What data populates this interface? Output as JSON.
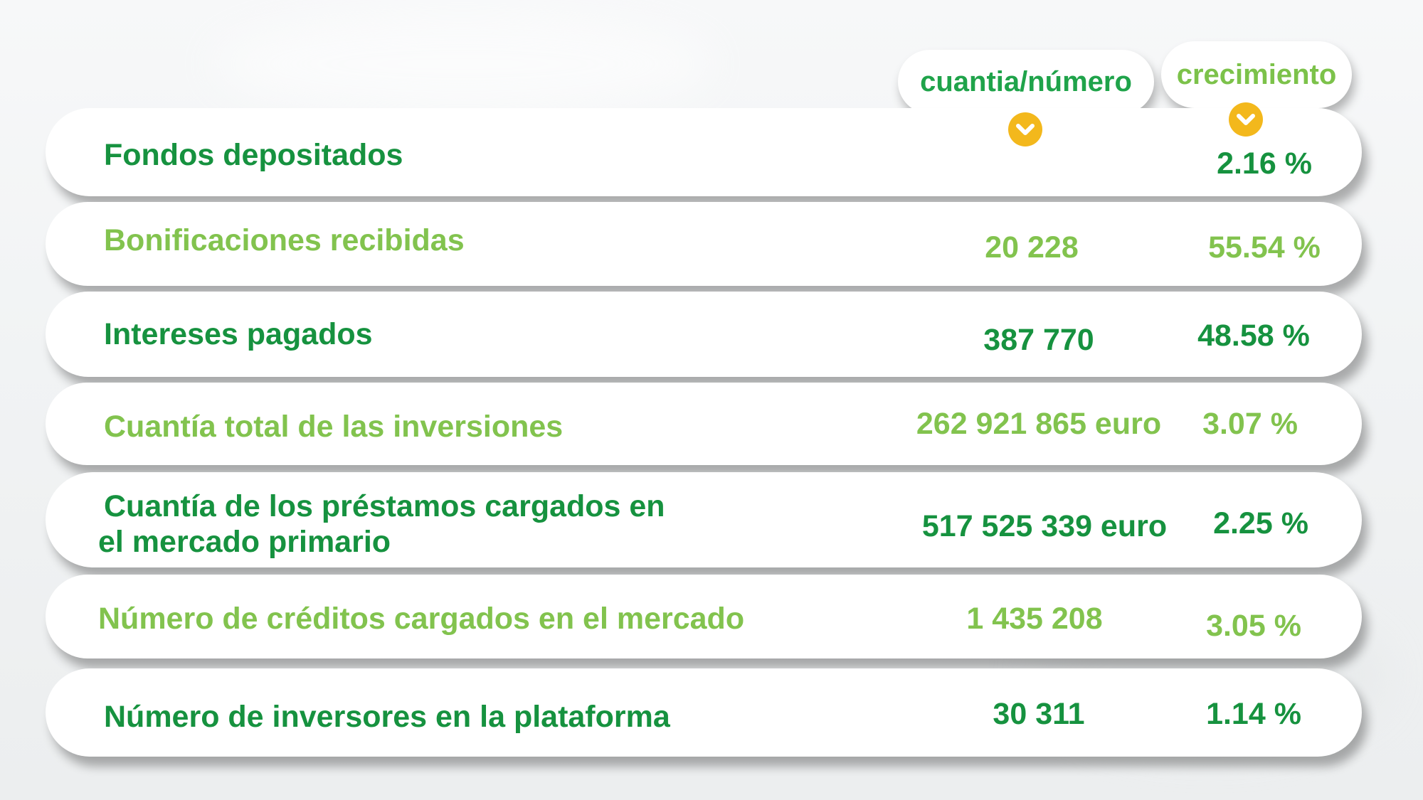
{
  "header": {
    "amount_label": "cuantia/número",
    "growth_label": "crecimiento"
  },
  "colors": {
    "dark_green": "#16923f",
    "light_green": "#82c34e",
    "chevron_yellow": "#f3b81c"
  },
  "icons": {
    "header_indicator": "chevron-down-icon"
  },
  "rows": [
    {
      "label": "Fondos depositados",
      "amount": "",
      "growth": "2.16 %"
    },
    {
      "label": "Bonificaciones recibidas",
      "amount": "20 228",
      "growth": "55.54 %"
    },
    {
      "label": "Intereses pagados",
      "amount": "387 770",
      "growth": "48.58 %"
    },
    {
      "label": "Cuantía total de las inversiones",
      "amount": "262 921 865 euro",
      "growth": "3.07 %"
    },
    {
      "label_line1": "Cuantía de los préstamos cargados en",
      "label_line2": "el mercado primario",
      "amount": "517 525 339 euro",
      "growth": "2.25 %"
    },
    {
      "label": "Número de créditos cargados en el mercado",
      "amount": "1 435 208",
      "growth": "3.05 %"
    },
    {
      "label": "Número de inversores en la plataforma",
      "amount": "30 311",
      "growth": "1.14 %"
    }
  ]
}
